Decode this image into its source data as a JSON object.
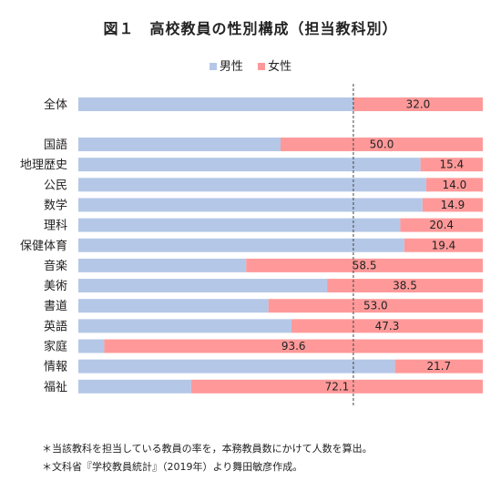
{
  "title": "図１　高校教員の性別構成（担当教科別）",
  "legend": {
    "male": "男性",
    "female": "女性"
  },
  "colors": {
    "male": "#b4c7e7",
    "female": "#ff9999",
    "divider": "#444444"
  },
  "chart_data": {
    "type": "bar",
    "orientation": "horizontal",
    "stacked": true,
    "categories": [
      "全体",
      "国語",
      "地理歴史",
      "公民",
      "数学",
      "理科",
      "保健体育",
      "音楽",
      "美術",
      "書道",
      "英語",
      "家庭",
      "情報",
      "福祉"
    ],
    "series": [
      {
        "name": "男性",
        "values": [
          68.0,
          50.0,
          84.6,
          86.0,
          85.1,
          79.6,
          80.6,
          41.5,
          61.5,
          47.0,
          52.7,
          6.4,
          78.3,
          27.9
        ]
      },
      {
        "name": "女性",
        "values": [
          32.0,
          50.0,
          15.4,
          14.0,
          14.9,
          20.4,
          19.4,
          58.5,
          38.5,
          53.0,
          47.3,
          93.6,
          21.7,
          72.1
        ]
      }
    ],
    "data_labels": [
      "32.0",
      "50.0",
      "15.4",
      "14.0",
      "14.9",
      "20.4",
      "19.4",
      "58.5",
      "38.5",
      "53.0",
      "47.3",
      "93.6",
      "21.7",
      "72.1"
    ],
    "xlim": [
      0,
      100
    ],
    "reference_line": 68.0
  },
  "notes": [
    "＊当該教科を担当している教員の率を，本務教員数にかけて人数を算出。",
    "＊文科省『学校教員統計』（2019年）より舞田敏彦作成。"
  ]
}
